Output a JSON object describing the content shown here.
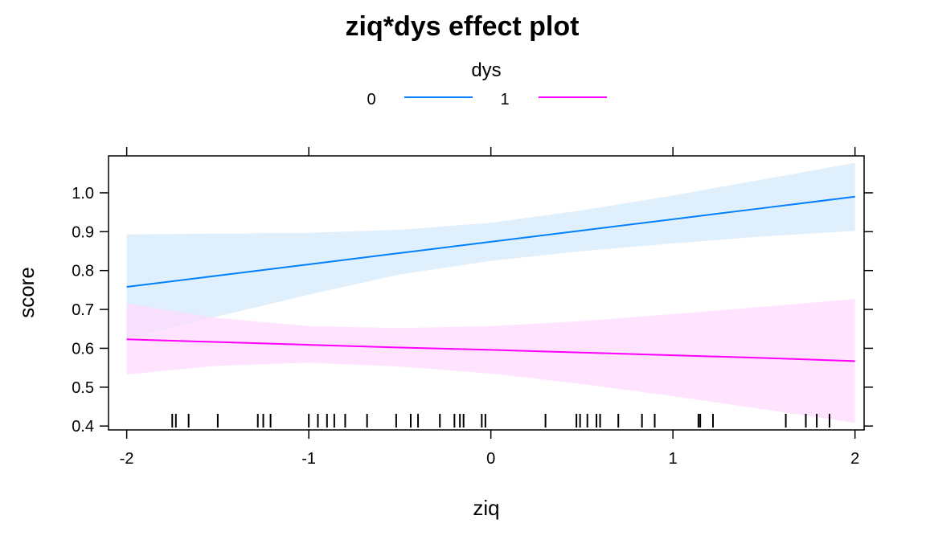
{
  "chart_data": {
    "type": "line",
    "title": "ziq*dys effect plot",
    "xlabel": "ziq",
    "ylabel": "score",
    "xlim": [
      -2.1,
      2.05
    ],
    "ylim": [
      0.39,
      1.095
    ],
    "x_ticks": [
      -2,
      -1,
      0,
      1,
      2
    ],
    "y_ticks": [
      0.4,
      0.5,
      0.6,
      0.7,
      0.8,
      0.9,
      1.0
    ],
    "x_tick_labels": [
      "-2",
      "-1",
      "0",
      "1",
      "2"
    ],
    "y_tick_labels": [
      "0.4",
      "0.5",
      "0.6",
      "0.7",
      "0.8",
      "0.9",
      "1.0"
    ],
    "grid": false,
    "legend": {
      "title": "dys",
      "placement": "top-center",
      "entries": [
        {
          "label": "0",
          "color": "#0080ff"
        },
        {
          "label": "1",
          "color": "#ff00ff"
        }
      ]
    },
    "series": [
      {
        "name": "0",
        "color": "#0080ff",
        "band_color": "#d6e9fb",
        "x": [
          -2,
          -1.5,
          -1,
          -0.5,
          0,
          0.5,
          1,
          1.5,
          2
        ],
        "values": [
          0.758,
          0.787,
          0.816,
          0.845,
          0.874,
          0.903,
          0.932,
          0.961,
          0.99
        ],
        "lower": [
          0.625,
          0.682,
          0.738,
          0.79,
          0.825,
          0.85,
          0.87,
          0.888,
          0.902
        ],
        "upper": [
          0.893,
          0.895,
          0.897,
          0.905,
          0.923,
          0.955,
          0.993,
          1.035,
          1.077
        ]
      },
      {
        "name": "1",
        "color": "#ff00ff",
        "band_color": "#ffd9ff",
        "x": [
          -2,
          -1.5,
          -1,
          -0.5,
          0,
          0.5,
          1,
          1.5,
          2
        ],
        "values": [
          0.623,
          0.616,
          0.609,
          0.602,
          0.596,
          0.589,
          0.582,
          0.575,
          0.567
        ],
        "lower": [
          0.533,
          0.555,
          0.563,
          0.553,
          0.535,
          0.508,
          0.477,
          0.443,
          0.408
        ],
        "upper": [
          0.715,
          0.678,
          0.657,
          0.652,
          0.657,
          0.67,
          0.688,
          0.707,
          0.727
        ]
      }
    ],
    "rug": [
      -1.75,
      -1.73,
      -1.66,
      -1.5,
      -1.28,
      -1.25,
      -1.21,
      -1.0,
      -0.95,
      -0.9,
      -0.86,
      -0.8,
      -0.68,
      -0.52,
      -0.44,
      -0.4,
      -0.28,
      -0.2,
      -0.17,
      -0.15,
      -0.05,
      -0.03,
      0.3,
      0.47,
      0.49,
      0.53,
      0.58,
      0.6,
      0.7,
      0.83,
      0.9,
      1.14,
      1.15,
      1.22,
      1.62,
      1.73,
      1.79,
      1.86
    ]
  }
}
